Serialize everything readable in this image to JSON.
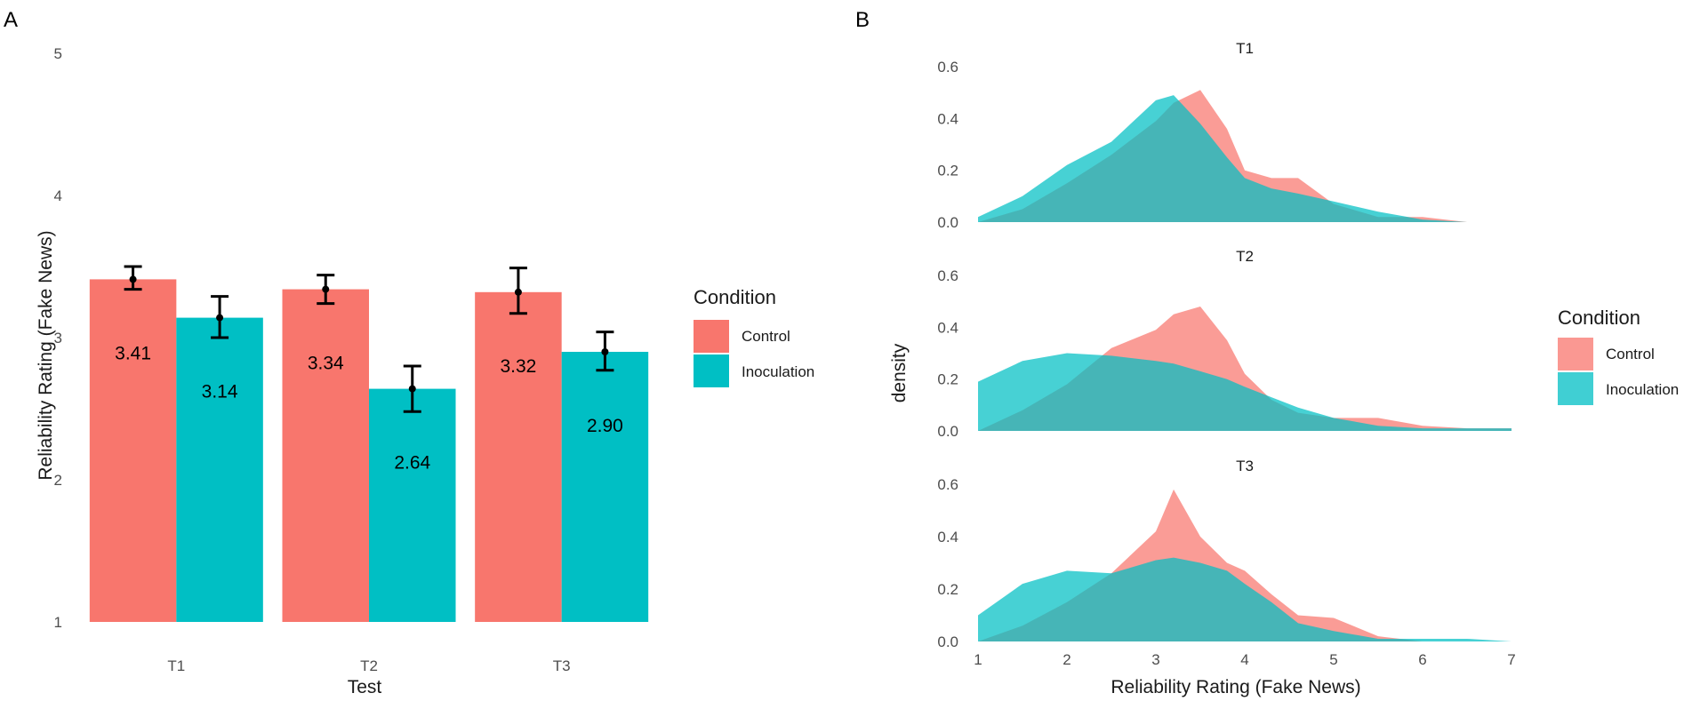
{
  "panel_a": {
    "letter": "A",
    "legend": {
      "title": "Condition",
      "entries": [
        {
          "label": "Control",
          "color": "#F8766D"
        },
        {
          "label": "Inoculation",
          "color": "#00BFC4"
        }
      ]
    }
  },
  "panel_b": {
    "letter": "B",
    "legend": {
      "title": "Condition",
      "entries": [
        {
          "label": "Control",
          "color": "#F8766D"
        },
        {
          "label": "Inoculation",
          "color": "#00BFC4"
        }
      ]
    }
  },
  "chart_data": [
    {
      "type": "bar",
      "xlabel": "Test",
      "ylabel": "Reliability Rating (Fake News)",
      "categories": [
        "T1",
        "T2",
        "T3"
      ],
      "ylim": [
        1,
        5
      ],
      "yticks": [
        1,
        2,
        3,
        4,
        5
      ],
      "grid": false,
      "legend_position": "right",
      "series": [
        {
          "name": "Control",
          "color": "#F8766D",
          "values": [
            3.41,
            3.34,
            3.32
          ],
          "labels": [
            "3.41",
            "3.34",
            "3.32"
          ],
          "error_low": [
            3.34,
            3.24,
            3.17
          ],
          "error_high": [
            3.5,
            3.44,
            3.49
          ]
        },
        {
          "name": "Inoculation",
          "color": "#00BFC4",
          "values": [
            3.14,
            2.64,
            2.9
          ],
          "labels": [
            "3.14",
            "2.64",
            "2.90"
          ],
          "error_low": [
            3.0,
            2.48,
            2.77
          ],
          "error_high": [
            3.29,
            2.8,
            3.04
          ]
        }
      ]
    },
    {
      "type": "area",
      "subtype": "density",
      "xlabel": "Reliability Rating (Fake News)",
      "ylabel": "density",
      "xlim": [
        1,
        7
      ],
      "xticks": [
        1,
        2,
        3,
        4,
        5,
        6,
        7
      ],
      "ylim": [
        0,
        0.6
      ],
      "yticks": [
        "0.0",
        "0.2",
        "0.4",
        "0.6"
      ],
      "grid": false,
      "legend_position": "right",
      "facets": [
        {
          "label": "T1",
          "x": [
            1,
            1.5,
            2,
            2.5,
            3,
            3.2,
            3.5,
            3.8,
            4,
            4.3,
            4.6,
            5,
            5.5,
            6,
            6.5,
            7
          ],
          "series": [
            {
              "name": "Control",
              "color": "#F8766D",
              "values": [
                0.0,
                0.05,
                0.15,
                0.26,
                0.39,
                0.46,
                0.51,
                0.36,
                0.2,
                0.17,
                0.17,
                0.07,
                0.02,
                0.02,
                0.0,
                0.0
              ]
            },
            {
              "name": "Inoculation",
              "color": "#00BFC4",
              "values": [
                0.02,
                0.1,
                0.22,
                0.31,
                0.47,
                0.49,
                0.38,
                0.25,
                0.17,
                0.13,
                0.11,
                0.08,
                0.04,
                0.01,
                0.0,
                0.0
              ]
            }
          ]
        },
        {
          "label": "T2",
          "x": [
            1,
            1.5,
            2,
            2.5,
            3,
            3.2,
            3.5,
            3.8,
            4,
            4.3,
            4.6,
            5,
            5.5,
            6,
            6.5,
            7
          ],
          "series": [
            {
              "name": "Control",
              "color": "#F8766D",
              "values": [
                0.0,
                0.08,
                0.18,
                0.32,
                0.39,
                0.45,
                0.48,
                0.35,
                0.22,
                0.12,
                0.07,
                0.05,
                0.05,
                0.02,
                0.01,
                0.01
              ]
            },
            {
              "name": "Inoculation",
              "color": "#00BFC4",
              "values": [
                0.19,
                0.27,
                0.3,
                0.29,
                0.27,
                0.26,
                0.23,
                0.2,
                0.17,
                0.13,
                0.09,
                0.05,
                0.02,
                0.01,
                0.01,
                0.01
              ]
            }
          ]
        },
        {
          "label": "T3",
          "x": [
            1,
            1.5,
            2,
            2.5,
            3,
            3.2,
            3.5,
            3.8,
            4,
            4.3,
            4.6,
            5,
            5.5,
            6,
            6.5,
            7
          ],
          "series": [
            {
              "name": "Control",
              "color": "#F8766D",
              "values": [
                0.0,
                0.06,
                0.15,
                0.26,
                0.42,
                0.58,
                0.4,
                0.3,
                0.27,
                0.18,
                0.1,
                0.09,
                0.02,
                0.0,
                0.0,
                0.0
              ]
            },
            {
              "name": "Inoculation",
              "color": "#00BFC4",
              "values": [
                0.1,
                0.22,
                0.27,
                0.26,
                0.31,
                0.32,
                0.3,
                0.27,
                0.22,
                0.15,
                0.07,
                0.04,
                0.01,
                0.01,
                0.01,
                0.0
              ]
            }
          ]
        }
      ]
    }
  ]
}
